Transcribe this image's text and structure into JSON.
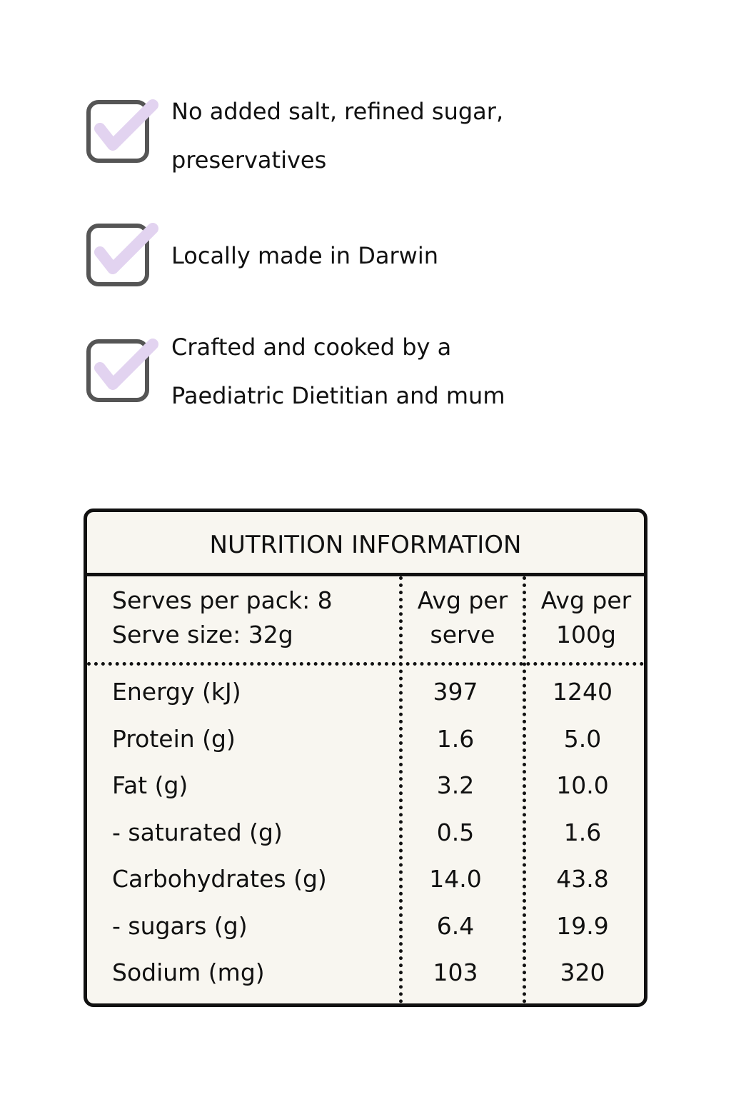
{
  "features": [
    {
      "lines": [
        "No added salt, refined sugar,",
        "preservatives"
      ]
    },
    {
      "lines": [
        "Locally made in Darwin"
      ]
    },
    {
      "lines": [
        "Crafted and cooked by a",
        "Paediatric Dietitian and mum"
      ]
    }
  ],
  "table": {
    "title": "NUTRITION INFORMATION",
    "header": {
      "serving": [
        "Serves per pack: 8",
        "Serve size: 32g"
      ],
      "per_serve": [
        "Avg per",
        "serve"
      ],
      "per_100g": [
        "Avg per",
        "100g"
      ]
    },
    "rows": [
      [
        "Energy (kJ)",
        "397",
        "1240"
      ],
      [
        "Protein (g)",
        "1.6",
        "5.0"
      ],
      [
        "Fat (g)",
        "3.2",
        "10.0"
      ],
      [
        "- saturated (g)",
        "0.5",
        "1.6"
      ],
      [
        "Carbohydrates (g)",
        "14.0",
        "43.8"
      ],
      [
        "- sugars (g)",
        "6.4",
        "19.9"
      ],
      [
        "Sodium (mg)",
        "103",
        "320"
      ]
    ]
  }
}
